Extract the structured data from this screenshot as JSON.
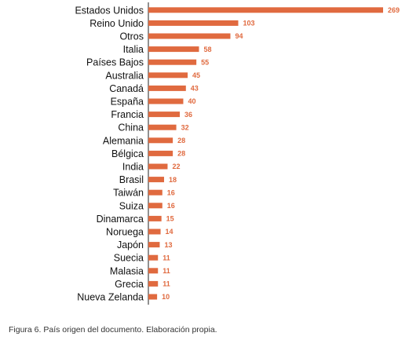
{
  "chart_data": {
    "type": "bar",
    "orientation": "horizontal",
    "categories": [
      "Estados Unidos",
      "Reino Unido",
      "Otros",
      "Italia",
      "Países Bajos",
      "Australia",
      "Canadá",
      "España",
      "Francia",
      "China",
      "Alemania",
      "Bélgica",
      "India",
      "Brasil",
      "Taiwán",
      "Suiza",
      "Dinamarca",
      "Noruega",
      "Japón",
      "Suecia",
      "Malasia",
      "Grecia",
      "Nueva Zelanda"
    ],
    "values": [
      269,
      103,
      94,
      58,
      55,
      45,
      43,
      40,
      36,
      32,
      28,
      28,
      22,
      18,
      16,
      16,
      15,
      14,
      13,
      11,
      11,
      11,
      10
    ],
    "xlim": [
      0,
      269
    ],
    "grid": false,
    "bar_color": "#E06A3F",
    "value_label_color": "#E06A3F"
  },
  "caption": "Figura 6. País origen del documento. Elaboración propia."
}
